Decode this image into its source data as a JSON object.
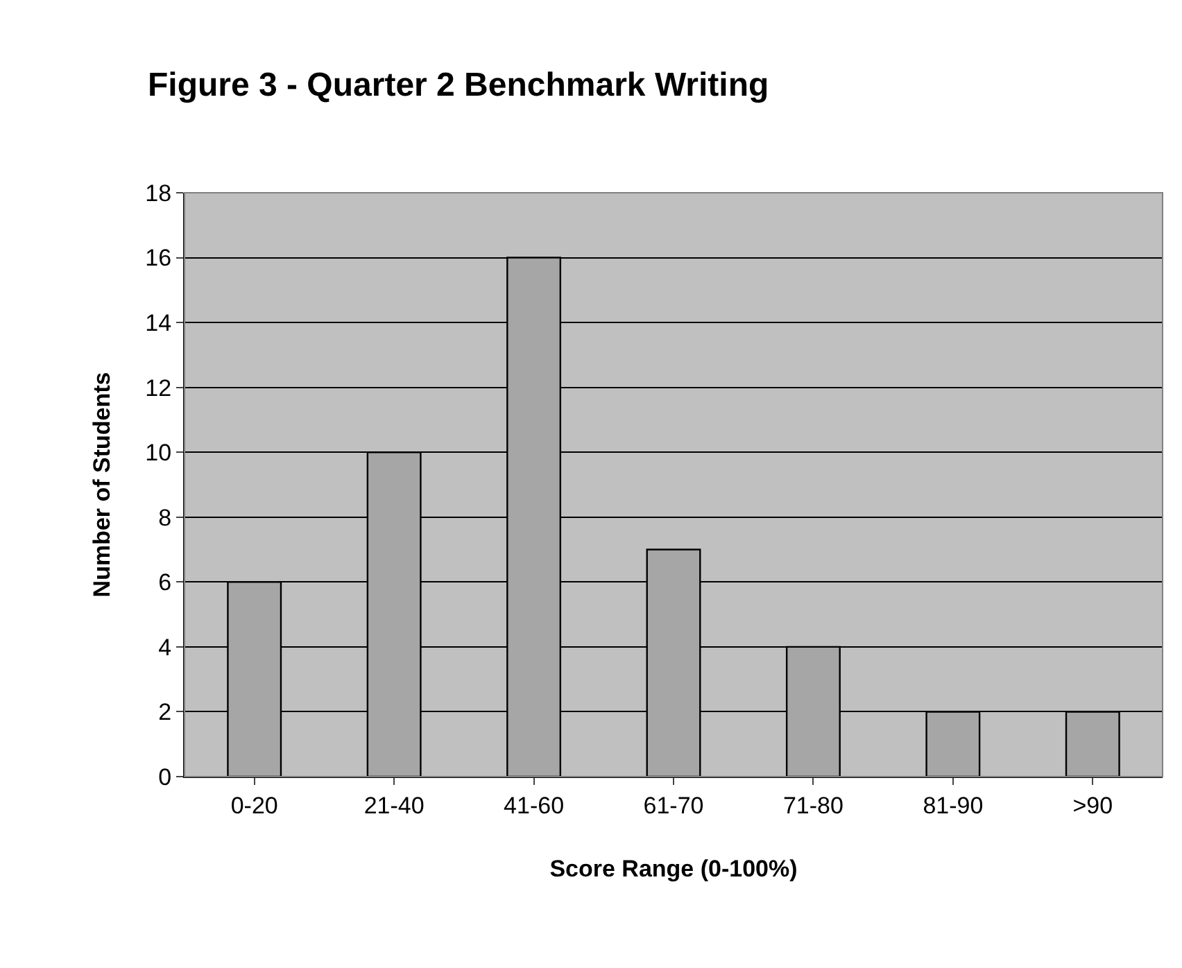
{
  "chart_data": {
    "type": "bar",
    "title": "Figure 3 - Quarter 2 Benchmark Writing",
    "xlabel": "Score Range (0-100%)",
    "ylabel": "Number of Students",
    "categories": [
      "0-20",
      "21-40",
      "41-60",
      "61-70",
      "71-80",
      "81-90",
      ">90"
    ],
    "values": [
      6,
      10,
      16,
      7,
      4,
      2,
      2
    ],
    "color": "#a6a6a6",
    "ylim": [
      0,
      18
    ],
    "yticks": [
      0,
      2,
      4,
      6,
      8,
      10,
      12,
      14,
      16,
      18
    ],
    "grid": "y"
  }
}
